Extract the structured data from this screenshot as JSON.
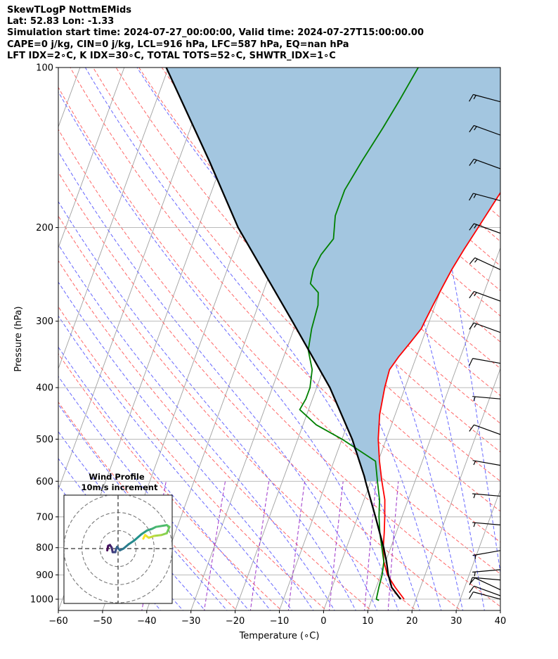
{
  "header": {
    "line1": "SkewTLogP NottmEMids",
    "line2": "Lat: 52.83   Lon: -1.33",
    "line3": "Simulation start time: 2024-07-27_00:00:00, Valid time: 2024-07-27T15:00:00.00",
    "line4": "CAPE=0 j/kg, CIN=0 j/kg, LCL=916 hPa, LFC=587 hPa, EQ=nan hPa",
    "line5": "LFT IDX=2∘C, K IDX=30∘C, TOTAL TOTS=52∘C, SHWTR_IDX=1∘C"
  },
  "chart_data": [
    {
      "type": "line",
      "title": "SkewTLogP NottmEMids",
      "xlabel": "Temperature (∘C)",
      "ylabel": "Pressure (hPa)",
      "xlim": [
        -60,
        40
      ],
      "ylim": [
        1050,
        100
      ],
      "x_ticks": [
        -60,
        -50,
        -40,
        -30,
        -20,
        -10,
        0,
        10,
        20,
        30,
        40
      ],
      "x_tick_labels": [
        "−60",
        "−50",
        "−40",
        "−30",
        "−20",
        "−10",
        "0",
        "10",
        "20",
        "30",
        "40"
      ],
      "y_ticks": [
        1000,
        900,
        800,
        700,
        600,
        500,
        400,
        300,
        200,
        100
      ],
      "y_tick_labels": [
        "1000",
        "900",
        "800",
        "700",
        "600",
        "500",
        "400",
        "300",
        "200",
        "100"
      ],
      "grid": true,
      "colors": {
        "temperature": "#ff0000",
        "dewpoint": "#008000",
        "parcel": "#000000",
        "shade": "#a3c6e0",
        "isotherm": "#a0a0a0",
        "dry_adiabat": "#ff6666",
        "moist_adiabat": "#6666ff",
        "mixing_ratio": "#9b30c8"
      },
      "series": [
        {
          "name": "Temperature",
          "points": [
            [
              1000,
              17.3
            ],
            [
              950,
              14.3
            ],
            [
              900,
              11.5
            ],
            [
              850,
              9.6
            ],
            [
              800,
              8.3
            ],
            [
              750,
              7.3
            ],
            [
              700,
              6.1
            ],
            [
              650,
              4.7
            ],
            [
              600,
              2.5
            ],
            [
              550,
              0.3
            ],
            [
              500,
              -1.8
            ],
            [
              450,
              -3.5
            ],
            [
              400,
              -4.6
            ],
            [
              370,
              -5.0
            ],
            [
              350,
              -4.0
            ],
            [
              330,
              -2.6
            ],
            [
              310,
              -1.2
            ],
            [
              300,
              -1.0
            ],
            [
              280,
              -0.5
            ],
            [
              260,
              0.1
            ],
            [
              240,
              0.8
            ],
            [
              220,
              1.9
            ],
            [
              200,
              3.3
            ],
            [
              180,
              4.8
            ],
            [
              160,
              6.5
            ],
            [
              145,
              8.0
            ],
            [
              130,
              10.0
            ],
            [
              120,
              10.5
            ],
            [
              115,
              11.5
            ],
            [
              108,
              12.3
            ],
            [
              100,
              13.0
            ]
          ]
        },
        {
          "name": "Dewpoint",
          "points": [
            [
              1005,
              11.7
            ],
            [
              1000,
              11.0
            ],
            [
              950,
              10.6
            ],
            [
              900,
              10.3
            ],
            [
              850,
              9.6
            ],
            [
              800,
              8.0
            ],
            [
              750,
              6.3
            ],
            [
              700,
              4.8
            ],
            [
              650,
              3.5
            ],
            [
              600,
              1.5
            ],
            [
              550,
              -0.6
            ],
            [
              500,
              -10.0
            ],
            [
              470,
              -17.0
            ],
            [
              440,
              -22.0
            ],
            [
              420,
              -21.5
            ],
            [
              400,
              -21.5
            ],
            [
              370,
              -22.5
            ],
            [
              340,
              -25.0
            ],
            [
              310,
              -26.0
            ],
            [
              280,
              -26.5
            ],
            [
              265,
              -27.5
            ],
            [
              255,
              -30.0
            ],
            [
              240,
              -30.5
            ],
            [
              225,
              -30.0
            ],
            [
              210,
              -28.5
            ],
            [
              190,
              -30.0
            ],
            [
              170,
              -30.0
            ],
            [
              150,
              -28.5
            ],
            [
              130,
              -26.5
            ],
            [
              115,
              -25.0
            ],
            [
              100,
              -23.5
            ]
          ]
        },
        {
          "name": "Parcel",
          "points": [
            [
              1000,
              16.5
            ],
            [
              950,
              13.5
            ],
            [
              916,
              12.3
            ],
            [
              900,
              11.7
            ],
            [
              850,
              10.2
            ],
            [
              800,
              8.4
            ],
            [
              700,
              4.0
            ],
            [
              600,
              -1.2
            ],
            [
              587,
              -1.9
            ],
            [
              500,
              -7.7
            ],
            [
              400,
              -17.0
            ],
            [
              300,
              -31.0
            ],
            [
              200,
              -51.0
            ],
            [
              150,
              -63.0
            ],
            [
              100,
              -80.5
            ]
          ]
        }
      ],
      "wind_barbs": [
        {
          "pressure": 1000,
          "speed_kt": 10,
          "dir_deg": 255
        },
        {
          "pressure": 985,
          "speed_kt": 10,
          "dir_deg": 250
        },
        {
          "pressure": 960,
          "speed_kt": 10,
          "dir_deg": 245
        },
        {
          "pressure": 920,
          "speed_kt": 10,
          "dir_deg": 265
        },
        {
          "pressure": 880,
          "speed_kt": 5,
          "dir_deg": 275
        },
        {
          "pressure": 810,
          "speed_kt": 5,
          "dir_deg": 280
        },
        {
          "pressure": 725,
          "speed_kt": 5,
          "dir_deg": 265
        },
        {
          "pressure": 640,
          "speed_kt": 5,
          "dir_deg": 265
        },
        {
          "pressure": 560,
          "speed_kt": 5,
          "dir_deg": 260
        },
        {
          "pressure": 490,
          "speed_kt": 10,
          "dir_deg": 250
        },
        {
          "pressure": 420,
          "speed_kt": 5,
          "dir_deg": 265
        },
        {
          "pressure": 360,
          "speed_kt": 10,
          "dir_deg": 260
        },
        {
          "pressure": 315,
          "speed_kt": 15,
          "dir_deg": 250
        },
        {
          "pressure": 275,
          "speed_kt": 15,
          "dir_deg": 250
        },
        {
          "pressure": 240,
          "speed_kt": 15,
          "dir_deg": 245
        },
        {
          "pressure": 205,
          "speed_kt": 15,
          "dir_deg": 250
        },
        {
          "pressure": 178,
          "speed_kt": 15,
          "dir_deg": 255
        },
        {
          "pressure": 155,
          "speed_kt": 15,
          "dir_deg": 250
        },
        {
          "pressure": 134,
          "speed_kt": 15,
          "dir_deg": 250
        },
        {
          "pressure": 116,
          "speed_kt": 15,
          "dir_deg": 255
        }
      ]
    },
    {
      "type": "scatter",
      "title": "Wind Profile",
      "subtitle": "10m/s increment",
      "rings_ms": [
        10,
        20,
        30
      ],
      "xlim": [
        -30,
        30
      ],
      "ylim": [
        -30,
        30
      ],
      "trace_uv": [
        [
          -6.0,
          -1.0
        ],
        [
          -5.5,
          1.5
        ],
        [
          -4.5,
          2.0
        ],
        [
          -3.5,
          0.5
        ],
        [
          -3.0,
          -2.0
        ],
        [
          -1.5,
          -2.0
        ],
        [
          -1.0,
          0.0
        ],
        [
          -0.5,
          1.0
        ],
        [
          1.0,
          -1.0
        ],
        [
          3.0,
          0.0
        ],
        [
          6.0,
          2.5
        ],
        [
          9.0,
          4.5
        ],
        [
          13.0,
          8.0
        ],
        [
          16.0,
          10.0
        ],
        [
          19.0,
          11.0
        ],
        [
          21.0,
          12.0
        ],
        [
          27.0,
          13.0
        ],
        [
          28.5,
          12.0
        ],
        [
          27.0,
          8.5
        ],
        [
          24.0,
          7.5
        ],
        [
          20.0,
          7.0
        ],
        [
          17.0,
          6.0
        ],
        [
          15.0,
          7.5
        ],
        [
          14.0,
          5.5
        ]
      ]
    }
  ]
}
